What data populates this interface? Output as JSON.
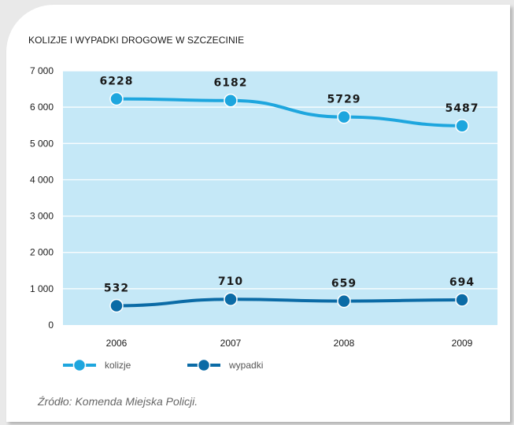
{
  "title": "KOLIZJE I WYPADKI DROGOWE W SZCZECINIE",
  "source": "Źródło: Komenda Miejska Policji.",
  "colors": {
    "plot_background": "#c5e8f7",
    "kolizje": "#1ea6de",
    "wypadki": "#0b6ba6"
  },
  "chart_data": {
    "type": "line",
    "x": [
      "2006",
      "2007",
      "2008",
      "2009"
    ],
    "series": [
      {
        "name": "kolizje",
        "values": [
          6228,
          6182,
          5729,
          5487
        ]
      },
      {
        "name": "wypadki",
        "values": [
          532,
          710,
          659,
          694
        ]
      }
    ],
    "ylim": [
      0,
      7000
    ],
    "yticks": [
      {
        "value": 0,
        "label": "0"
      },
      {
        "value": 1000,
        "label": "1 000"
      },
      {
        "value": 2000,
        "label": "2 000"
      },
      {
        "value": 3000,
        "label": "3 000"
      },
      {
        "value": 4000,
        "label": "4 000"
      },
      {
        "value": 5000,
        "label": "5 000"
      },
      {
        "value": 6000,
        "label": "6 000"
      },
      {
        "value": 7000,
        "label": "7 000"
      }
    ],
    "grid": true,
    "legend": "bottom-left"
  }
}
